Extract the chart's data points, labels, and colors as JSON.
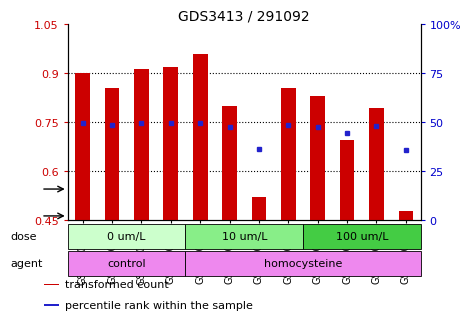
{
  "title": "GDS3413 / 291092",
  "samples": [
    "GSM240525",
    "GSM240526",
    "GSM240527",
    "GSM240528",
    "GSM240529",
    "GSM240530",
    "GSM240531",
    "GSM240532",
    "GSM240533",
    "GSM240534",
    "GSM240535",
    "GSM240848"
  ],
  "transformed_count": [
    0.9,
    0.855,
    0.915,
    0.92,
    0.96,
    0.8,
    0.52,
    0.855,
    0.83,
    0.695,
    0.795,
    0.48
  ],
  "percentile_rank_left": [
    0.748,
    0.742,
    0.748,
    0.748,
    0.748,
    0.735,
    0.668,
    0.742,
    0.735,
    0.718,
    0.738,
    0.665
  ],
  "ylim_left": [
    0.45,
    1.05
  ],
  "ylim_right": [
    0,
    100
  ],
  "yticks_left": [
    0.45,
    0.6,
    0.75,
    0.9,
    1.05
  ],
  "yticks_right": [
    0,
    25,
    50,
    75,
    100
  ],
  "right_tick_labels": [
    "0",
    "25",
    "50",
    "75",
    "100%"
  ],
  "bar_color": "#cc0000",
  "dot_color": "#2222cc",
  "bar_bottom": 0.45,
  "bar_width": 0.5,
  "grid_yticks": [
    0.6,
    0.75,
    0.9
  ],
  "dose_groups": [
    {
      "label": "0 um/L",
      "start": 0,
      "end": 4,
      "color": "#ccffcc"
    },
    {
      "label": "10 um/L",
      "start": 4,
      "end": 8,
      "color": "#88ee88"
    },
    {
      "label": "100 um/L",
      "start": 8,
      "end": 12,
      "color": "#44cc44"
    }
  ],
  "agent_groups": [
    {
      "label": "control",
      "start": 0,
      "end": 4,
      "color": "#ee88ee"
    },
    {
      "label": "homocysteine",
      "start": 4,
      "end": 12,
      "color": "#ee88ee"
    }
  ],
  "legend_items": [
    {
      "color": "#cc0000",
      "label": "transformed count"
    },
    {
      "color": "#2222cc",
      "label": "percentile rank within the sample"
    }
  ],
  "bg_color": "#ffffff",
  "label_color_left": "#cc0000",
  "label_color_right": "#0000cc",
  "title_fontsize": 10,
  "tick_fontsize": 8,
  "sample_fontsize": 7,
  "legend_fontsize": 8
}
